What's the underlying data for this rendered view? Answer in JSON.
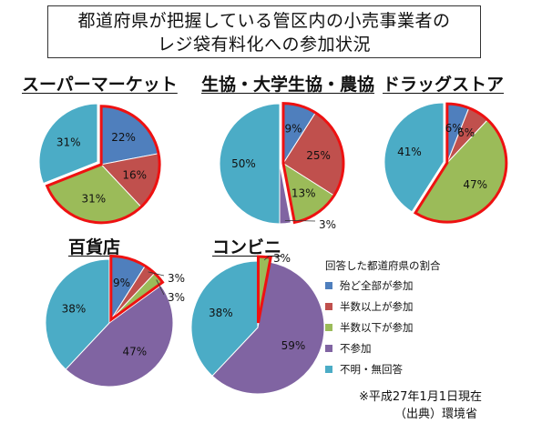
{
  "header": {
    "title_line1": "都道府県が把握している管区内の小売事業者の",
    "title_line2": "レジ袋有料化への参加状況"
  },
  "colors": {
    "blue": "#4f7fbd",
    "red": "#c0504d",
    "green": "#9bbb59",
    "purple": "#8064a2",
    "teal": "#4bacc6",
    "highlight_border": "#ee1111"
  },
  "legend": {
    "title": "回答した都道府県の割合",
    "items": [
      {
        "label": "殆ど全部が参加",
        "color": "#4f7fbd"
      },
      {
        "label": "半数以上が参加",
        "color": "#c0504d"
      },
      {
        "label": "半数以下が参加",
        "color": "#9bbb59"
      },
      {
        "label": "不参加",
        "color": "#8064a2"
      },
      {
        "label": "不明・無回答",
        "color": "#4bacc6"
      }
    ]
  },
  "footer": {
    "date_note": "※平成27年1月1日現在",
    "source_note": "（出典）環境省"
  },
  "chart_data": [
    {
      "type": "pie",
      "title": "スーパーマーケット",
      "categories": [
        "殆ど全部が参加",
        "半数以上が参加",
        "半数以下が参加",
        "不参加",
        "不明・無回答"
      ],
      "values": [
        22,
        16,
        31,
        0,
        31
      ],
      "labels": [
        "22%",
        "16%",
        "31%",
        "",
        "31%"
      ],
      "highlighted": [
        "殆ど全部が参加",
        "半数以上が参加",
        "半数以下が参加"
      ]
    },
    {
      "type": "pie",
      "title": "生協・大学生協・農協",
      "categories": [
        "殆ど全部が参加",
        "半数以上が参加",
        "半数以下が参加",
        "不参加",
        "不明・無回答"
      ],
      "values": [
        9,
        25,
        13,
        3,
        50
      ],
      "labels": [
        "9%",
        "25%",
        "13%",
        "3%",
        "50%"
      ],
      "highlighted": [
        "殆ど全部が参加",
        "半数以上が参加",
        "半数以下が参加"
      ]
    },
    {
      "type": "pie",
      "title": "ドラッグストア",
      "categories": [
        "殆ど全部が参加",
        "半数以上が参加",
        "半数以下が参加",
        "不参加",
        "不明・無回答"
      ],
      "values": [
        6,
        6,
        47,
        0,
        41
      ],
      "labels": [
        "6%",
        "6%",
        "47%",
        "",
        "41%"
      ],
      "highlighted": [
        "殆ど全部が参加",
        "半数以上が参加",
        "半数以下が参加"
      ]
    },
    {
      "type": "pie",
      "title": "百貨店",
      "categories": [
        "殆ど全部が参加",
        "半数以上が参加",
        "半数以下が参加",
        "不参加",
        "不明・無回答"
      ],
      "values": [
        9,
        3,
        3,
        47,
        38
      ],
      "labels": [
        "9%",
        "3%",
        "3%",
        "47%",
        "38%"
      ],
      "highlighted": [
        "殆ど全部が参加",
        "半数以上が参加",
        "半数以下が参加"
      ]
    },
    {
      "type": "pie",
      "title": "コンビニ",
      "categories": [
        "殆ど全部が参加",
        "半数以上が参加",
        "半数以下が参加",
        "不参加",
        "不明・無回答"
      ],
      "values": [
        0,
        0,
        3,
        59,
        38
      ],
      "labels": [
        "",
        "",
        "3%",
        "59%",
        "38%"
      ],
      "highlighted": [
        "半数以下が参加"
      ]
    }
  ]
}
